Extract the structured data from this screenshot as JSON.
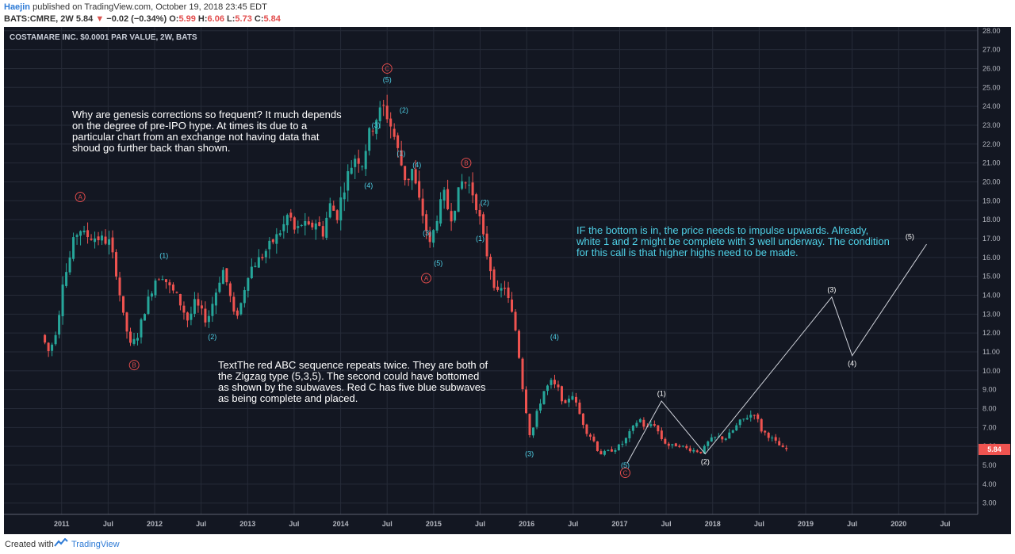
{
  "header": {
    "author": "Haejin",
    "published_text": "published on TradingView.com, October 19, 2018 23:45 EDT",
    "symbol": "BATS:CMRE, 2W",
    "last": "5.84",
    "change": "−0.02 (−0.34%)",
    "o_label": "O:",
    "o_value": "5.99",
    "h_label": "H:",
    "h_value": "6.06",
    "l_label": "L:",
    "l_value": "5.73",
    "c_label": "C:",
    "c_value": "5.84"
  },
  "footer": {
    "created_with": "Created with",
    "brand": "TradingView",
    "logo_icon": "tradingview-logo-icon"
  },
  "chart_data": {
    "type": "candlestick",
    "title": "COSTAMARE INC. $0.0001 PAR VALUE, 2W, BATS",
    "y_axis": {
      "min": 2.4,
      "max": 28.2,
      "ticks": [
        "3.00",
        "4.00",
        "5.00",
        "6.00",
        "7.00",
        "8.00",
        "9.00",
        "10.00",
        "11.00",
        "12.00",
        "13.00",
        "14.00",
        "15.00",
        "16.00",
        "17.00",
        "18.00",
        "19.00",
        "20.00",
        "21.00",
        "22.00",
        "23.00",
        "24.00",
        "25.00",
        "26.00",
        "27.00",
        "28.00"
      ]
    },
    "x_axis": {
      "labels": [
        {
          "t": 2011.0,
          "label": "2011"
        },
        {
          "t": 2011.5,
          "label": "Jul"
        },
        {
          "t": 2012.0,
          "label": "2012"
        },
        {
          "t": 2012.5,
          "label": "Jul"
        },
        {
          "t": 2013.0,
          "label": "2013"
        },
        {
          "t": 2013.5,
          "label": "Jul"
        },
        {
          "t": 2014.0,
          "label": "2014"
        },
        {
          "t": 2014.5,
          "label": "Jul"
        },
        {
          "t": 2015.0,
          "label": "2015"
        },
        {
          "t": 2015.5,
          "label": "Jul"
        },
        {
          "t": 2016.0,
          "label": "2016"
        },
        {
          "t": 2016.5,
          "label": "Jul"
        },
        {
          "t": 2017.0,
          "label": "2017"
        },
        {
          "t": 2017.5,
          "label": "Jul"
        },
        {
          "t": 2018.0,
          "label": "2018"
        },
        {
          "t": 2018.5,
          "label": "Jul"
        },
        {
          "t": 2019.0,
          "label": "2019"
        },
        {
          "t": 2019.5,
          "label": "Jul"
        },
        {
          "t": 2020.0,
          "label": "2020"
        },
        {
          "t": 2020.5,
          "label": "Jul"
        }
      ]
    },
    "last_price": "5.84",
    "colors": {
      "up": "#26a69a",
      "down": "#ef5350",
      "background": "#131722",
      "grid": "#262b38",
      "red_label": "#e24c4c",
      "blue_label": "#4fd0e6",
      "white_label": "#ffffff",
      "last_price_bg": "#ef5350"
    },
    "price_path": [
      [
        2010.82,
        11.9
      ],
      [
        2010.9,
        11.0
      ],
      [
        2010.95,
        11.6
      ],
      [
        2011.0,
        12.6
      ],
      [
        2011.05,
        14.8
      ],
      [
        2011.1,
        15.4
      ],
      [
        2011.17,
        16.9
      ],
      [
        2011.23,
        17.6
      ],
      [
        2011.27,
        17.2
      ],
      [
        2011.35,
        17.1
      ],
      [
        2011.45,
        17.0
      ],
      [
        2011.55,
        16.8
      ],
      [
        2011.62,
        15.4
      ],
      [
        2011.7,
        12.9
      ],
      [
        2011.78,
        11.3
      ],
      [
        2011.85,
        11.8
      ],
      [
        2011.93,
        13.2
      ],
      [
        2012.0,
        14.2
      ],
      [
        2012.05,
        14.9
      ],
      [
        2012.12,
        15.1
      ],
      [
        2012.2,
        14.4
      ],
      [
        2012.27,
        14.0
      ],
      [
        2012.33,
        13.4
      ],
      [
        2012.4,
        12.6
      ],
      [
        2012.47,
        13.6
      ],
      [
        2012.53,
        13.2
      ],
      [
        2012.6,
        12.6
      ],
      [
        2012.68,
        13.9
      ],
      [
        2012.77,
        15.4
      ],
      [
        2012.83,
        14.4
      ],
      [
        2012.9,
        12.7
      ],
      [
        2012.97,
        13.6
      ],
      [
        2013.0,
        14.3
      ],
      [
        2013.05,
        15.3
      ],
      [
        2013.12,
        15.7
      ],
      [
        2013.2,
        16.1
      ],
      [
        2013.27,
        16.6
      ],
      [
        2013.35,
        17.1
      ],
      [
        2013.42,
        17.6
      ],
      [
        2013.48,
        18.4
      ],
      [
        2013.55,
        17.3
      ],
      [
        2013.62,
        17.8
      ],
      [
        2013.7,
        17.5
      ],
      [
        2013.77,
        17.9
      ],
      [
        2013.85,
        17.3
      ],
      [
        2013.92,
        18.8
      ],
      [
        2014.0,
        18.2
      ],
      [
        2014.06,
        19.5
      ],
      [
        2014.13,
        20.6
      ],
      [
        2014.2,
        21.4
      ],
      [
        2014.27,
        21.0
      ],
      [
        2014.33,
        22.3
      ],
      [
        2014.38,
        22.9
      ],
      [
        2014.43,
        23.5
      ],
      [
        2014.5,
        23.9
      ],
      [
        2014.55,
        23.4
      ],
      [
        2014.62,
        22.3
      ],
      [
        2014.68,
        21.1
      ],
      [
        2014.75,
        19.9
      ],
      [
        2014.8,
        20.8
      ],
      [
        2014.87,
        19.2
      ],
      [
        2014.92,
        18.3
      ],
      [
        2015.0,
        16.6
      ],
      [
        2015.08,
        18.3
      ],
      [
        2015.15,
        19.3
      ],
      [
        2015.22,
        18.1
      ],
      [
        2015.3,
        19.3
      ],
      [
        2015.35,
        20.1
      ],
      [
        2015.42,
        19.8
      ],
      [
        2015.47,
        19.3
      ],
      [
        2015.52,
        18.4
      ],
      [
        2015.58,
        16.8
      ],
      [
        2015.65,
        15.4
      ],
      [
        2015.72,
        14.0
      ],
      [
        2015.8,
        14.5
      ],
      [
        2015.87,
        13.2
      ],
      [
        2015.93,
        11.9
      ],
      [
        2016.0,
        8.9
      ],
      [
        2016.08,
        6.4
      ],
      [
        2016.15,
        7.8
      ],
      [
        2016.22,
        8.9
      ],
      [
        2016.3,
        9.4
      ],
      [
        2016.38,
        9.0
      ],
      [
        2016.45,
        8.1
      ],
      [
        2016.52,
        8.9
      ],
      [
        2016.6,
        7.8
      ],
      [
        2016.68,
        6.8
      ],
      [
        2016.75,
        6.4
      ],
      [
        2016.82,
        5.6
      ],
      [
        2016.9,
        5.7
      ],
      [
        2017.0,
        5.9
      ],
      [
        2017.08,
        6.2
      ],
      [
        2017.17,
        6.9
      ],
      [
        2017.25,
        7.5
      ],
      [
        2017.32,
        6.9
      ],
      [
        2017.4,
        7.3
      ],
      [
        2017.5,
        6.3
      ],
      [
        2017.58,
        6.0
      ],
      [
        2017.67,
        6.1
      ],
      [
        2017.75,
        5.9
      ],
      [
        2017.83,
        5.8
      ],
      [
        2017.92,
        5.7
      ],
      [
        2018.0,
        6.3
      ],
      [
        2018.08,
        6.5
      ],
      [
        2018.17,
        6.4
      ],
      [
        2018.25,
        6.8
      ],
      [
        2018.33,
        7.3
      ],
      [
        2018.42,
        7.6
      ],
      [
        2018.5,
        7.8
      ],
      [
        2018.55,
        6.9
      ],
      [
        2018.63,
        6.6
      ],
      [
        2018.72,
        6.2
      ],
      [
        2018.8,
        5.84
      ]
    ],
    "projection": [
      [
        2017.08,
        5.1
      ],
      [
        2017.45,
        8.4
      ],
      [
        2017.92,
        5.6
      ],
      [
        2019.28,
        13.9
      ],
      [
        2019.5,
        10.8
      ],
      [
        2020.3,
        16.7
      ]
    ],
    "wave_labels": [
      {
        "t": 2014.5,
        "p": 26.0,
        "text": "C",
        "style": "red-circle"
      },
      {
        "t": 2014.5,
        "p": 25.4,
        "text": "(5)",
        "style": "blue"
      },
      {
        "t": 2014.38,
        "p": 23.0,
        "text": "(3)",
        "style": "blue"
      },
      {
        "t": 2014.68,
        "p": 23.8,
        "text": "(2)",
        "style": "blue"
      },
      {
        "t": 2014.65,
        "p": 21.5,
        "text": "(1)",
        "style": "blue"
      },
      {
        "t": 2014.82,
        "p": 20.9,
        "text": "(4)",
        "style": "blue"
      },
      {
        "t": 2014.3,
        "p": 19.8,
        "text": "(4)",
        "style": "blue"
      },
      {
        "t": 2015.35,
        "p": 21.0,
        "text": "B",
        "style": "red-circle"
      },
      {
        "t": 2015.55,
        "p": 18.9,
        "text": "(2)",
        "style": "blue"
      },
      {
        "t": 2014.93,
        "p": 17.3,
        "text": "(3)",
        "style": "blue"
      },
      {
        "t": 2015.5,
        "p": 17.0,
        "text": "(1)",
        "style": "blue"
      },
      {
        "t": 2015.05,
        "p": 15.7,
        "text": "(5)",
        "style": "blue"
      },
      {
        "t": 2014.92,
        "p": 14.9,
        "text": "A",
        "style": "red-circle"
      },
      {
        "t": 2011.2,
        "p": 19.2,
        "text": "A",
        "style": "red-circle"
      },
      {
        "t": 2012.1,
        "p": 16.1,
        "text": "(1)",
        "style": "blue"
      },
      {
        "t": 2012.62,
        "p": 11.8,
        "text": "(2)",
        "style": "blue"
      },
      {
        "t": 2011.78,
        "p": 10.3,
        "text": "B",
        "style": "red-circle"
      },
      {
        "t": 2016.3,
        "p": 11.8,
        "text": "(4)",
        "style": "blue"
      },
      {
        "t": 2016.03,
        "p": 5.6,
        "text": "(3)",
        "style": "blue"
      },
      {
        "t": 2017.06,
        "p": 5.0,
        "text": "(5)",
        "style": "blue"
      },
      {
        "t": 2017.06,
        "p": 4.6,
        "text": "C",
        "style": "red-circle"
      },
      {
        "t": 2017.45,
        "p": 8.8,
        "text": "(1)",
        "style": "white"
      },
      {
        "t": 2017.92,
        "p": 5.2,
        "text": "(2)",
        "style": "white"
      },
      {
        "t": 2019.28,
        "p": 14.3,
        "text": "(3)",
        "style": "white"
      },
      {
        "t": 2019.5,
        "p": 10.4,
        "text": "(4)",
        "style": "white"
      },
      {
        "t": 2020.12,
        "p": 17.1,
        "text": "(5)",
        "style": "white"
      }
    ],
    "annotations": [
      {
        "lines": [
          "Why are genesis corrections so frequent? It much depends",
          "on the degree of pre-IPO hype. At times its due to a",
          "particular chart from an exchange not having data that",
          "shoud go further back than shown."
        ],
        "color": "white"
      },
      {
        "lines": [
          "TextThe red ABC sequence repeats twice. They are both of",
          "the Zigzag type (5,3,5). The second could have bottomed",
          "as shown by the subwaves. Red C has five blue subwaves",
          "as being complete and placed."
        ],
        "color": "white"
      },
      {
        "lines": [
          "IF the bottom is in, the price needs to impulse upwards. Already,",
          "white 1 and 2 might be complete with 3 well underway. The condition",
          "for this call is that higher highs need to be made."
        ],
        "color": "cyan"
      }
    ]
  }
}
